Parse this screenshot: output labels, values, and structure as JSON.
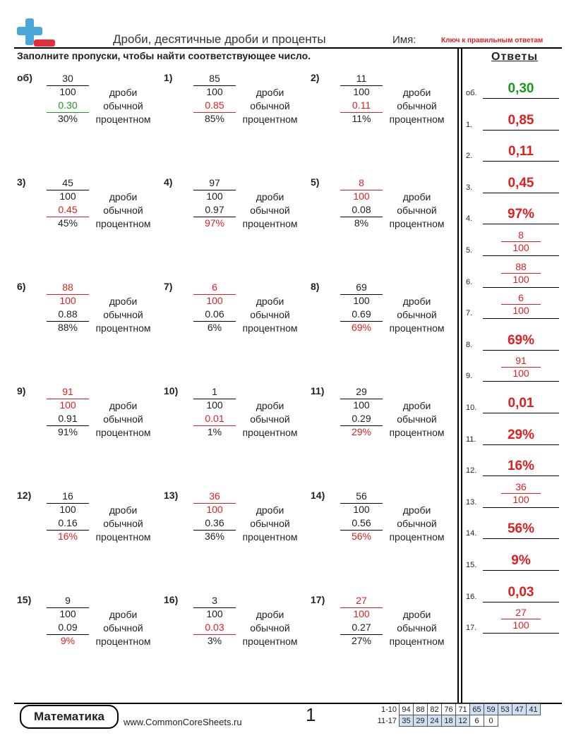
{
  "header": {
    "title": "Дроби, десятичные дроби и проценты",
    "name_label": "Имя:",
    "key_label": "Ключ к правильным ответам"
  },
  "instructions": "Заполните пропуски, чтобы найти соответствующее число.",
  "answers_title": "Ответы",
  "labels": {
    "fraction": "дроби",
    "decimal": "обычной",
    "percent": "процентном"
  },
  "problems": [
    {
      "num": "об)",
      "num_text": "30",
      "den": "100",
      "dec": "0.30",
      "pct": "30%",
      "ans": "dec",
      "ans_color": "green"
    },
    {
      "num": "1)",
      "num_text": "85",
      "den": "100",
      "dec": "0.85",
      "pct": "85%",
      "ans": "dec"
    },
    {
      "num": "2)",
      "num_text": "11",
      "den": "100",
      "dec": "0.11",
      "pct": "11%",
      "ans": "dec"
    },
    {
      "num": "3)",
      "num_text": "45",
      "den": "100",
      "dec": "0.45",
      "pct": "45%",
      "ans": "dec"
    },
    {
      "num": "4)",
      "num_text": "97",
      "den": "100",
      "dec": "0.97",
      "pct": "97%",
      "ans": "pct"
    },
    {
      "num": "5)",
      "num_text": "8",
      "den": "100",
      "dec": "0.08",
      "pct": "8%",
      "ans": "frac"
    },
    {
      "num": "6)",
      "num_text": "88",
      "den": "100",
      "dec": "0.88",
      "pct": "88%",
      "ans": "frac"
    },
    {
      "num": "7)",
      "num_text": "6",
      "den": "100",
      "dec": "0.06",
      "pct": "6%",
      "ans": "frac"
    },
    {
      "num": "8)",
      "num_text": "69",
      "den": "100",
      "dec": "0.69",
      "pct": "69%",
      "ans": "pct"
    },
    {
      "num": "9)",
      "num_text": "91",
      "den": "100",
      "dec": "0.91",
      "pct": "91%",
      "ans": "frac"
    },
    {
      "num": "10)",
      "num_text": "1",
      "den": "100",
      "dec": "0.01",
      "pct": "1%",
      "ans": "dec"
    },
    {
      "num": "11)",
      "num_text": "29",
      "den": "100",
      "dec": "0.29",
      "pct": "29%",
      "ans": "pct"
    },
    {
      "num": "12)",
      "num_text": "16",
      "den": "100",
      "dec": "0.16",
      "pct": "16%",
      "ans": "pct"
    },
    {
      "num": "13)",
      "num_text": "36",
      "den": "100",
      "dec": "0.36",
      "pct": "36%",
      "ans": "frac"
    },
    {
      "num": "14)",
      "num_text": "56",
      "den": "100",
      "dec": "0.56",
      "pct": "56%",
      "ans": "pct"
    },
    {
      "num": "15)",
      "num_text": "9",
      "den": "100",
      "dec": "0.09",
      "pct": "9%",
      "ans": "pct"
    },
    {
      "num": "16)",
      "num_text": "3",
      "den": "100",
      "dec": "0.03",
      "pct": "3%",
      "ans": "dec"
    },
    {
      "num": "17)",
      "num_text": "27",
      "den": "100",
      "dec": "0.27",
      "pct": "27%",
      "ans": "frac"
    }
  ],
  "answers": [
    {
      "label": "об.",
      "type": "text",
      "value": "0,30",
      "color": "green"
    },
    {
      "label": "1.",
      "type": "text",
      "value": "0,85"
    },
    {
      "label": "2.",
      "type": "text",
      "value": "0,11"
    },
    {
      "label": "3.",
      "type": "text",
      "value": "0,45"
    },
    {
      "label": "4.",
      "type": "text",
      "value": "97%"
    },
    {
      "label": "5.",
      "type": "frac",
      "num": "8",
      "den": "100"
    },
    {
      "label": "6.",
      "type": "frac",
      "num": "88",
      "den": "100"
    },
    {
      "label": "7.",
      "type": "frac",
      "num": "6",
      "den": "100"
    },
    {
      "label": "8.",
      "type": "text",
      "value": "69%"
    },
    {
      "label": "9.",
      "type": "frac",
      "num": "91",
      "den": "100"
    },
    {
      "label": "10.",
      "type": "text",
      "value": "0,01"
    },
    {
      "label": "11.",
      "type": "text",
      "value": "29%"
    },
    {
      "label": "12.",
      "type": "text",
      "value": "16%"
    },
    {
      "label": "13.",
      "type": "frac",
      "num": "36",
      "den": "100"
    },
    {
      "label": "14.",
      "type": "text",
      "value": "56%"
    },
    {
      "label": "15.",
      "type": "text",
      "value": "9%"
    },
    {
      "label": "16.",
      "type": "text",
      "value": "0,03"
    },
    {
      "label": "17.",
      "type": "frac",
      "num": "27",
      "den": "100"
    }
  ],
  "footer": {
    "brand": "Математика",
    "site": "www.CommonCoreSheets.ru",
    "page": "1"
  },
  "key_table": [
    {
      "label": "1-10",
      "cells": [
        "94",
        "88",
        "82",
        "76",
        "71",
        "65",
        "59",
        "53",
        "47",
        "41"
      ],
      "highlight_from": 5
    },
    {
      "label": "11-17",
      "cells": [
        "35",
        "29",
        "24",
        "18",
        "12",
        "6",
        "0"
      ],
      "highlight_from": 0,
      "highlight_to": 5
    }
  ],
  "colors": {
    "red": "#e02020",
    "green": "#1a9a1a",
    "logo_blue": "#4aa8d8",
    "logo_red": "#e0303a"
  }
}
